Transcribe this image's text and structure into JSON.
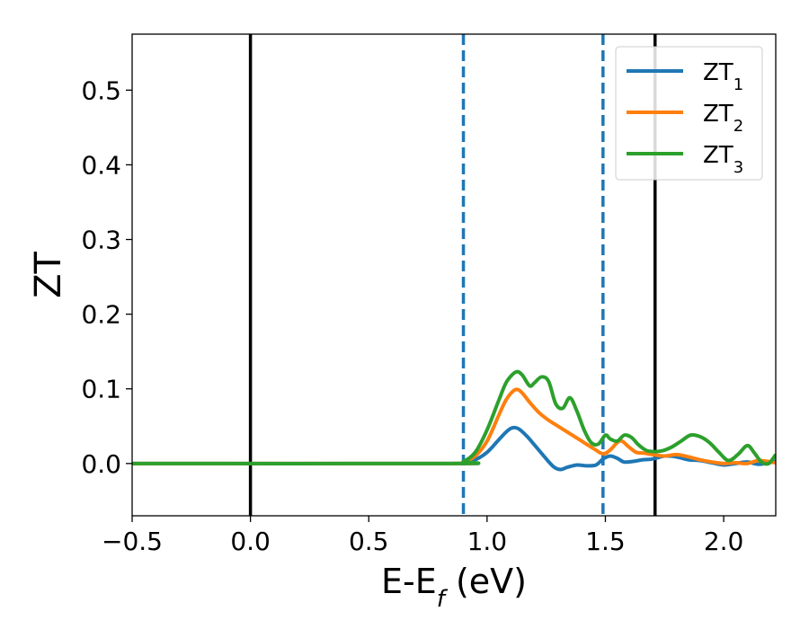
{
  "chart_data": {
    "type": "line",
    "title": "",
    "xlabel_main": "E-E",
    "xlabel_sub": "f",
    "xlabel_unit": " (eV)",
    "ylabel": "ZT",
    "xlim": [
      -0.5,
      2.22
    ],
    "ylim": [
      -0.07,
      0.575
    ],
    "xticks": [
      -0.5,
      0.0,
      0.5,
      1.0,
      1.5,
      2.0
    ],
    "xtick_labels": [
      "−0.5",
      "0.0",
      "0.5",
      "1.0",
      "1.5",
      "2.0"
    ],
    "yticks": [
      0.0,
      0.1,
      0.2,
      0.3,
      0.4,
      0.5
    ],
    "ytick_labels": [
      "0.0",
      "0.1",
      "0.2",
      "0.3",
      "0.4",
      "0.5"
    ],
    "grid": false,
    "legend_position": "top-right",
    "vlines": [
      {
        "x": 0.0,
        "style": "solid",
        "color": "#000000"
      },
      {
        "x": 1.71,
        "style": "solid",
        "color": "#000000"
      },
      {
        "x": 0.9,
        "style": "dashed",
        "color": "#1f77b4"
      },
      {
        "x": 1.49,
        "style": "dashed",
        "color": "#1f77b4"
      }
    ],
    "series": [
      {
        "name": "ZT",
        "name_sub": "1",
        "color": "#1f77b4",
        "x": [
          -0.5,
          0.85,
          0.9,
          0.95,
          1.0,
          1.05,
          1.08,
          1.1,
          1.12,
          1.14,
          1.17,
          1.2,
          1.24,
          1.28,
          1.31,
          1.34,
          1.38,
          1.42,
          1.46,
          1.49,
          1.52,
          1.55,
          1.58,
          1.62,
          1.66,
          1.7,
          1.75,
          1.8,
          1.85,
          1.9,
          1.95,
          2.0,
          2.05,
          2.1,
          2.15,
          2.22
        ],
        "y": [
          0.0,
          0.0,
          0.001,
          0.005,
          0.015,
          0.032,
          0.042,
          0.047,
          0.048,
          0.045,
          0.036,
          0.025,
          0.01,
          -0.004,
          -0.008,
          -0.005,
          -0.002,
          -0.003,
          -0.002,
          0.006,
          0.01,
          0.007,
          0.002,
          0.003,
          0.005,
          0.006,
          0.01,
          0.009,
          0.005,
          0.004,
          0.001,
          -0.002,
          0.0,
          0.002,
          -0.001,
          0.003
        ]
      },
      {
        "name": "ZT",
        "name_sub": "2",
        "color": "#ff7f0e",
        "x": [
          -0.5,
          0.85,
          0.9,
          0.95,
          1.0,
          1.05,
          1.08,
          1.11,
          1.13,
          1.15,
          1.18,
          1.22,
          1.26,
          1.3,
          1.35,
          1.4,
          1.45,
          1.49,
          1.52,
          1.55,
          1.57,
          1.6,
          1.63,
          1.66,
          1.7,
          1.75,
          1.8,
          1.85,
          1.9,
          1.95,
          2.0,
          2.05,
          2.1,
          2.15,
          2.22
        ],
        "y": [
          0.0,
          0.0,
          0.002,
          0.01,
          0.03,
          0.065,
          0.085,
          0.097,
          0.099,
          0.094,
          0.082,
          0.068,
          0.058,
          0.05,
          0.04,
          0.03,
          0.02,
          0.013,
          0.018,
          0.028,
          0.03,
          0.022,
          0.015,
          0.014,
          0.012,
          0.01,
          0.012,
          0.009,
          0.005,
          0.002,
          0.0,
          0.001,
          0.0,
          0.004,
          0.001
        ]
      },
      {
        "name": "ZT",
        "name_sub": "3",
        "color": "#2ca02c",
        "x": [
          -0.5,
          0.85,
          0.9,
          0.95,
          1.0,
          1.05,
          1.08,
          1.11,
          1.13,
          1.15,
          1.18,
          1.2,
          1.23,
          1.26,
          1.29,
          1.32,
          1.35,
          1.38,
          1.41,
          1.44,
          1.47,
          1.5,
          1.52,
          1.55,
          1.58,
          1.61,
          1.64,
          1.67,
          1.7,
          1.74,
          1.78,
          1.82,
          1.86,
          1.9,
          1.94,
          1.98,
          2.02,
          2.06,
          2.1,
          2.13,
          2.16,
          2.19,
          2.22
        ],
        "y": [
          0.0,
          0.0,
          0.003,
          0.015,
          0.045,
          0.085,
          0.108,
          0.12,
          0.123,
          0.118,
          0.104,
          0.108,
          0.116,
          0.11,
          0.08,
          0.074,
          0.088,
          0.07,
          0.045,
          0.028,
          0.026,
          0.038,
          0.033,
          0.03,
          0.038,
          0.035,
          0.025,
          0.018,
          0.016,
          0.017,
          0.022,
          0.03,
          0.038,
          0.036,
          0.028,
          0.015,
          0.004,
          0.012,
          0.024,
          0.014,
          0.002,
          0.0,
          0.012
        ]
      }
    ]
  }
}
